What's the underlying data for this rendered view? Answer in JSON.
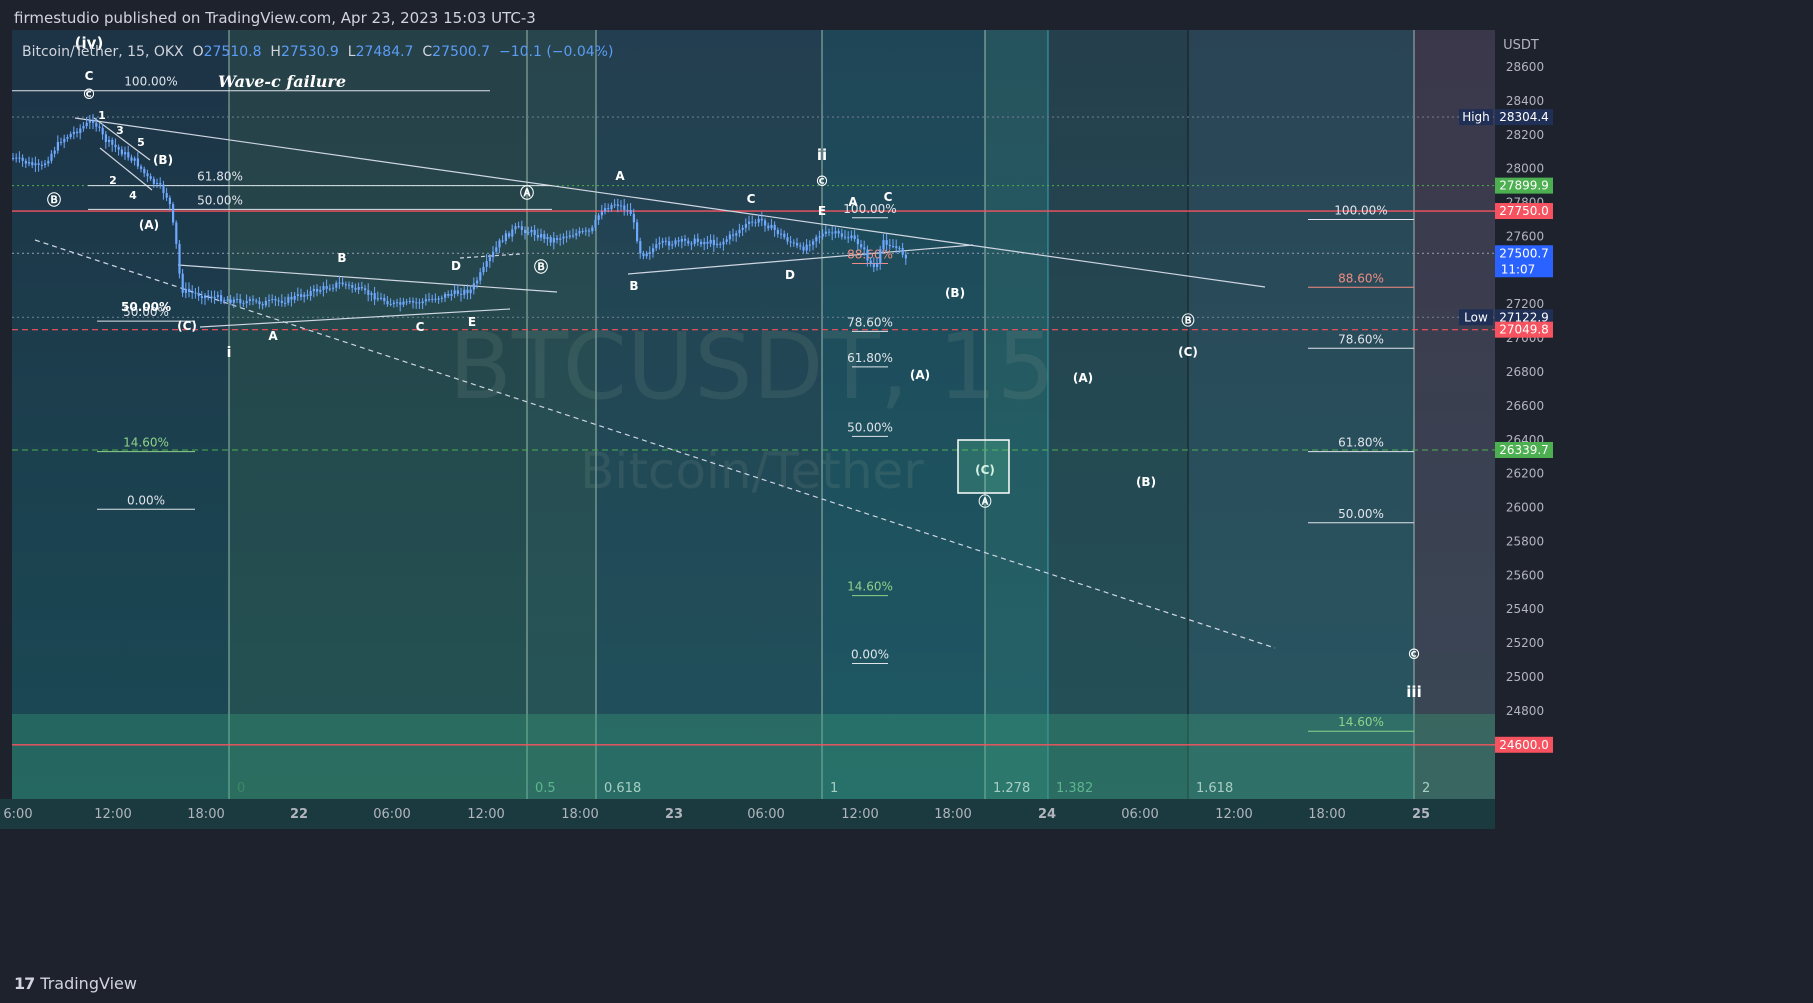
{
  "header": {
    "publisher_line": "firmestudio published on TradingView.com, Apr 23, 2023 15:03 UTC-3"
  },
  "legend": {
    "symbol": "Bitcoin/Tether, 15, OKX",
    "open_label": "O",
    "open": "27510.8",
    "high_label": "H",
    "high": "27530.9",
    "low_label": "L",
    "low": "27484.7",
    "close_label": "C",
    "close": "27500.7",
    "change": "−10.1 (−0.04%)"
  },
  "footer": {
    "brand": "TradingView"
  },
  "watermark": {
    "symbol": "BTCUSDT, 15",
    "name": "Bitcoin/Tether"
  },
  "annotations": {
    "title": "Wave-c failure"
  },
  "colors": {
    "background": "#1b3a4a",
    "candle": "#5b9cf6",
    "resistance": "#f7525f",
    "support_dashed": "#4caf50",
    "price_tag": "#2962ff"
  },
  "chart_data": {
    "type": "candlestick",
    "symbol": "BTCUSDT",
    "exchange": "OKX",
    "timeframe": "15",
    "currency": "USDT",
    "ylim": [
      24500,
      28700
    ],
    "y_ticks": [
      28600,
      28400,
      28200,
      28000,
      27800,
      27600,
      27400,
      27200,
      27000,
      26800,
      26600,
      26400,
      26200,
      26000,
      25800,
      25600,
      25400,
      25200,
      25000,
      24800
    ],
    "x_ticks": [
      "6:00",
      "12:00",
      "18:00",
      "22",
      "06:00",
      "12:00",
      "18:00",
      "23",
      "06:00",
      "12:00",
      "18:00",
      "24",
      "06:00",
      "12:00",
      "18:00",
      "25"
    ],
    "price_labels": [
      {
        "label": "High",
        "value": "28304.4"
      },
      {
        "label": "",
        "value": "27899.9"
      },
      {
        "label": "",
        "value": "27750.0"
      },
      {
        "label": "",
        "value": "27500.7",
        "sub": "11:07"
      },
      {
        "label": "Low",
        "value": "27122.9"
      },
      {
        "label": "",
        "value": "27049.8"
      },
      {
        "label": "",
        "value": "26339.7"
      },
      {
        "label": "",
        "value": "24600.0"
      }
    ],
    "horizontal_levels": [
      {
        "value": 27750.0,
        "style": "solid",
        "color": "#f7525f"
      },
      {
        "value": 27899.9,
        "style": "dotted",
        "color": "#4caf50"
      },
      {
        "value": 27049.8,
        "style": "dashed",
        "color": "#f7525f"
      },
      {
        "value": 26339.7,
        "style": "dashed",
        "color": "#4caf50"
      },
      {
        "value": 24600.0,
        "style": "solid",
        "color": "#f7525f"
      },
      {
        "value": 28304.4,
        "style": "dotted",
        "color": "#6a7a90"
      },
      {
        "value": 27500.7,
        "style": "dotted",
        "color": "#8a96a8"
      },
      {
        "value": 27122.9,
        "style": "dotted",
        "color": "#6a7a90"
      }
    ],
    "fib_time_labels": [
      "0",
      "0.5",
      "0.618",
      "1",
      "1.278",
      "1.382",
      "1.618",
      "2"
    ],
    "fib_sets": [
      {
        "levels": [
          {
            "label": "100.00%",
            "value": 28460
          },
          {
            "label": "61.80%",
            "value": 27900
          },
          {
            "label": "50.00%",
            "value": 27760
          },
          {
            "label": "50.00%",
            "value": 27100
          },
          {
            "label": "14.60%",
            "value": 26330
          },
          {
            "label": "0.00%",
            "value": 25990
          }
        ]
      },
      {
        "levels": [
          {
            "label": "100.00%",
            "value": 27710
          },
          {
            "label": "88.60%",
            "value": 27440
          },
          {
            "label": "78.60%",
            "value": 27040
          },
          {
            "label": "61.80%",
            "value": 26830
          },
          {
            "label": "50.00%",
            "value": 26420
          },
          {
            "label": "14.60%",
            "value": 25480
          },
          {
            "label": "0.00%",
            "value": 25080
          }
        ]
      },
      {
        "levels": [
          {
            "label": "100.00%",
            "value": 27700
          },
          {
            "label": "88.60%",
            "value": 27300
          },
          {
            "label": "78.60%",
            "value": 26940
          },
          {
            "label": "61.80%",
            "value": 26330
          },
          {
            "label": "50.00%",
            "value": 25910
          },
          {
            "label": "14.60%",
            "value": 24680
          }
        ]
      }
    ],
    "wave_labels": [
      "(iv)",
      "C",
      "©",
      "1",
      "3",
      "5",
      "2",
      "4",
      "(B)",
      "Ⓑ",
      "(A)",
      "Wave-c failure",
      "B",
      "D",
      "A",
      "C",
      "E",
      "(C)",
      "50.00%",
      "i",
      "Ⓐ",
      "Ⓑ",
      "A",
      "B",
      "C",
      "D",
      "E",
      "A",
      "C",
      "ii",
      "©",
      "(B)",
      "(A)",
      "(C)",
      "Ⓐ",
      "(A)",
      "Ⓑ",
      "(C)",
      "(B)",
      "©",
      "iii"
    ],
    "candles_approx": [
      {
        "t": "10:00 Apr21",
        "close": 28050
      },
      {
        "t": "11:00",
        "close": 28260
      },
      {
        "t": "12:00",
        "close": 28110
      },
      {
        "t": "14:00",
        "close": 27900
      },
      {
        "t": "15:00",
        "close": 27740
      },
      {
        "t": "16:30",
        "close": 27280
      },
      {
        "t": "20:00 Apr21",
        "close": 27200
      },
      {
        "t": "Apr22 06:00",
        "close": 27240
      },
      {
        "t": "Apr22 12:00",
        "close": 27390
      },
      {
        "t": "Apr22 14:00",
        "close": 27700
      },
      {
        "t": "Apr22 18:00",
        "close": 27800
      },
      {
        "t": "Apr22 20:00",
        "close": 27560
      },
      {
        "t": "Apr23 06:00",
        "close": 27690
      },
      {
        "t": "Apr23 10:00",
        "close": 27650
      },
      {
        "t": "Apr23 12:30",
        "close": 27450
      },
      {
        "t": "Apr23 14:00",
        "close": 27500.7
      }
    ]
  }
}
